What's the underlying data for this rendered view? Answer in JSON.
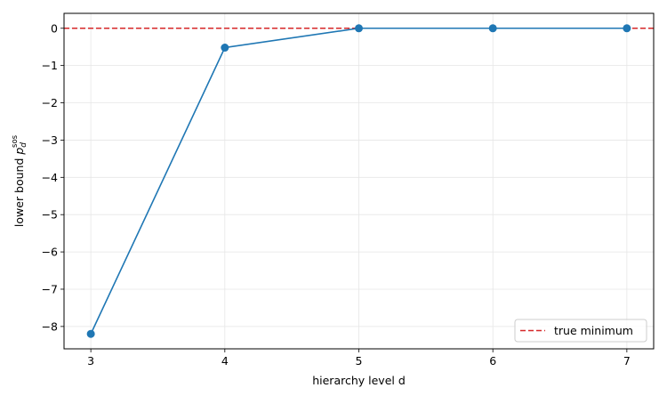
{
  "chart_data": {
    "type": "line",
    "title": "",
    "xlabel": "hierarchy level d",
    "ylabel": {
      "prefix": "lower bound ",
      "symbol": "p",
      "subscript": "d",
      "superscript": "sos"
    },
    "x": [
      3,
      4,
      5,
      6,
      7
    ],
    "series": [
      {
        "name": "",
        "values": [
          -8.2,
          -0.52,
          0.0,
          0.0,
          0.0
        ],
        "color": "#1f77b4",
        "marker": "circle"
      }
    ],
    "reference_line": {
      "name": "true minimum",
      "y": 0,
      "color": "#d62728",
      "style": "dashed"
    },
    "xlim": [
      2.8,
      7.2
    ],
    "ylim": [
      -8.6,
      0.4
    ],
    "xticks": [
      "3",
      "4",
      "5",
      "6",
      "7"
    ],
    "yticks": [
      "0",
      "−1",
      "−2",
      "−3",
      "−4",
      "−5",
      "−6",
      "−7",
      "−8"
    ],
    "grid": true,
    "legend_position": "lower-right"
  }
}
